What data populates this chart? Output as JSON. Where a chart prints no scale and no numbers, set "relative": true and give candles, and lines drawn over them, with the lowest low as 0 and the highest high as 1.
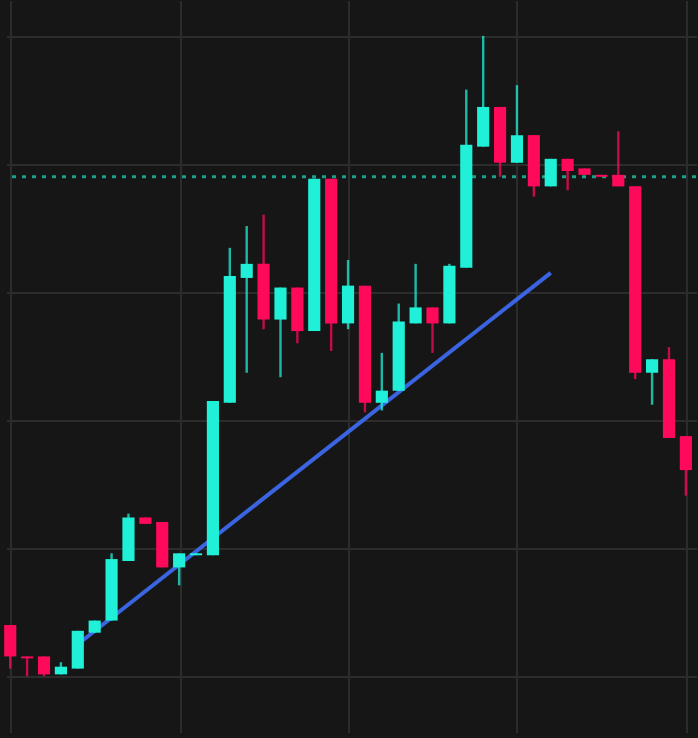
{
  "chart_data": {
    "type": "candlestick",
    "relative": true,
    "grid": true,
    "categories": [
      null,
      null,
      null,
      null,
      null,
      null,
      null,
      null,
      null,
      null,
      null,
      null,
      null,
      null,
      null,
      null,
      null,
      null,
      null,
      null,
      null,
      null,
      null,
      null,
      null,
      null,
      null,
      null,
      null,
      null,
      null,
      null,
      null,
      null,
      null,
      null,
      null,
      null,
      null,
      null,
      null
    ],
    "ohlc": [
      [
        0.08,
        0.08,
        0.012,
        0.031
      ],
      [
        0.031,
        0.031,
        0.0,
        0.028
      ],
      [
        0.031,
        0.031,
        0.0,
        0.003
      ],
      [
        0.003,
        0.022,
        0.003,
        0.015
      ],
      [
        0.012,
        0.071,
        0.012,
        0.071
      ],
      [
        0.068,
        0.087,
        0.068,
        0.087
      ],
      [
        0.087,
        0.192,
        0.087,
        0.183
      ],
      [
        0.18,
        0.254,
        0.18,
        0.248
      ],
      [
        0.248,
        0.248,
        0.238,
        0.238
      ],
      [
        0.241,
        0.241,
        0.17,
        0.17
      ],
      [
        0.17,
        0.192,
        0.142,
        0.192
      ],
      [
        0.189,
        0.192,
        0.189,
        0.192
      ],
      [
        0.189,
        0.43,
        0.189,
        0.43
      ],
      [
        0.427,
        0.669,
        0.427,
        0.625
      ],
      [
        0.622,
        0.703,
        0.474,
        0.644
      ],
      [
        0.644,
        0.721,
        0.542,
        0.557
      ],
      [
        0.557,
        0.607,
        0.467,
        0.607
      ],
      [
        0.607,
        0.607,
        0.52,
        0.539
      ],
      [
        0.539,
        0.777,
        0.539,
        0.777
      ],
      [
        0.777,
        0.777,
        0.508,
        0.551
      ],
      [
        0.551,
        0.65,
        0.542,
        0.61
      ],
      [
        0.61,
        0.61,
        0.412,
        0.427
      ],
      [
        0.427,
        0.505,
        0.415,
        0.446
      ],
      [
        0.446,
        0.582,
        0.446,
        0.554
      ],
      [
        0.551,
        0.644,
        0.551,
        0.576
      ],
      [
        0.576,
        0.576,
        0.505,
        0.551
      ],
      [
        0.551,
        0.644,
        0.551,
        0.641
      ],
      [
        0.638,
        0.916,
        0.638,
        0.83
      ],
      [
        0.827,
        1.0,
        0.827,
        0.889
      ],
      [
        0.889,
        0.889,
        0.78,
        0.802
      ],
      [
        0.802,
        0.923,
        0.802,
        0.845
      ],
      [
        0.845,
        0.845,
        0.749,
        0.765
      ],
      [
        0.765,
        0.808,
        0.765,
        0.808
      ],
      [
        0.808,
        0.808,
        0.759,
        0.789
      ],
      [
        0.793,
        0.793,
        0.783,
        0.783
      ],
      [
        0.783,
        0.783,
        0.78,
        0.78
      ],
      [
        0.783,
        0.851,
        0.765,
        0.765
      ],
      [
        0.765,
        0.765,
        0.464,
        0.474
      ],
      [
        0.474,
        0.495,
        0.424,
        0.495
      ],
      [
        0.495,
        0.514,
        0.372,
        0.372
      ],
      [
        0.375,
        0.375,
        0.282,
        0.322
      ]
    ],
    "colors": [
      "#ff0a5a",
      "#ff0a5a",
      "#ff0a5a",
      "#20f0d8",
      "#20f0d8",
      "#20f0d8",
      "#20f0d8",
      "#20f0d8",
      "#ff0a5a",
      "#ff0a5a",
      "#20f0d8",
      "#20f0d8",
      "#20f0d8",
      "#20f0d8",
      "#20f0d8",
      "#ff0a5a",
      "#20f0d8",
      "#ff0a5a",
      "#20f0d8",
      "#ff0a5a",
      "#20f0d8",
      "#ff0a5a",
      "#20f0d8",
      "#20f0d8",
      "#20f0d8",
      "#ff0a5a",
      "#20f0d8",
      "#20f0d8",
      "#20f0d8",
      "#ff0a5a",
      "#20f0d8",
      "#ff0a5a",
      "#20f0d8",
      "#ff0a5a",
      "#ff0a5a",
      "#ff0a5a",
      "#ff0a5a",
      "#ff0a5a",
      "#20f0d8",
      "#ff0a5a",
      "#ff0a5a"
    ],
    "series": [
      {
        "type": "line",
        "color": "#3a64e0",
        "line_style": "solid",
        "values": [
          null,
          null,
          null,
          null,
          0.05,
          null,
          null,
          null,
          null,
          null,
          null,
          null,
          null,
          null,
          null,
          null,
          null,
          null,
          null,
          null,
          null,
          null,
          null,
          null,
          null,
          null,
          null,
          null,
          null,
          null,
          null,
          null,
          0.63,
          null,
          null,
          null,
          null,
          null,
          null,
          null,
          null
        ]
      }
    ],
    "ref_lines": [
      {
        "axis": "y",
        "value": 0.78,
        "color": "#1f9e8c",
        "line_style": "dotted"
      }
    ]
  }
}
